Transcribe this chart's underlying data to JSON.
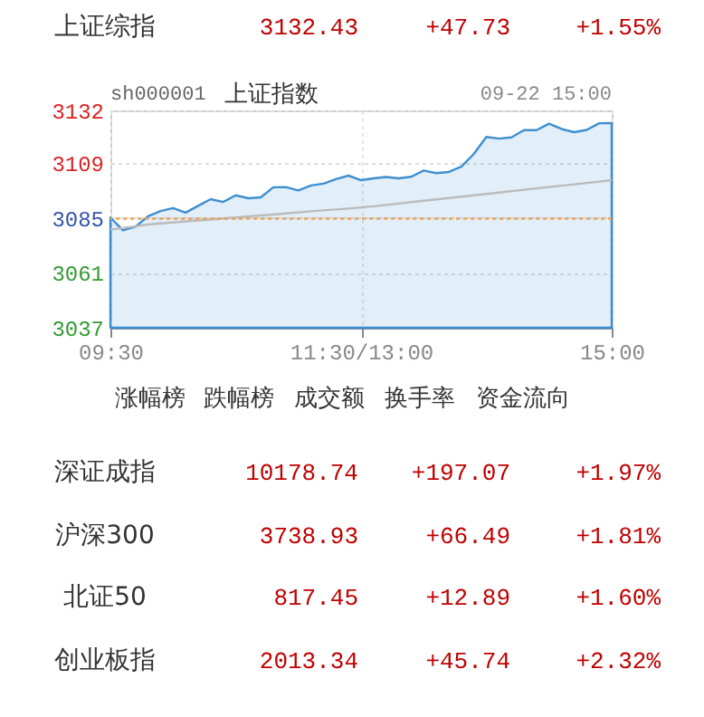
{
  "chart_data": [
    {
      "type": "other",
      "annotations": [
        "上证综指",
        "3132.43",
        "+47.73",
        "+1.55%"
      ]
    },
    {
      "type": "line",
      "title": "上证指数",
      "annotations": [
        "sh000001",
        "09-22 15:00"
      ],
      "categories": [
        "09:30",
        null,
        null,
        null,
        null,
        null,
        null,
        null,
        null,
        null,
        null,
        null,
        null,
        null,
        null,
        null,
        null,
        null,
        null,
        null,
        "11:30/13:00",
        null,
        null,
        null,
        null,
        null,
        null,
        null,
        null,
        null,
        null,
        null,
        null,
        null,
        null,
        null,
        null,
        null,
        null,
        null,
        "15:00"
      ],
      "ylim": [
        3037,
        3132
      ],
      "yticks": [
        3037,
        3061,
        3085,
        3109,
        3132
      ],
      "grid": true,
      "series": [
        {
          "type": "area",
          "color": "#3d8fd0",
          "values": [
            3085.2,
            3079.6,
            3081.2,
            3085.7,
            3088.0,
            3089.3,
            3087.3,
            3090.3,
            3093.2,
            3092.0,
            3094.9,
            3093.6,
            3094.0,
            3098.4,
            3098.5,
            3097.0,
            3099.2,
            3100.0,
            3102.0,
            3103.5,
            3101.5,
            3102.3,
            3102.9,
            3102.3,
            3103.0,
            3105.7,
            3104.6,
            3105.1,
            3107.4,
            3113.0,
            3120.4,
            3119.7,
            3120.2,
            3123.4,
            3123.4,
            3126.2,
            3123.9,
            3122.5,
            3123.5,
            3126.4,
            3126.5
          ]
        },
        {
          "type": "line",
          "color": "#bbbbbb",
          "values": [
            3079.9,
            3080.6,
            3081.4,
            3082.1,
            3082.6,
            3083.0,
            3083.5,
            3083.9,
            3084.3,
            3084.8,
            3085.2,
            3085.7,
            3086.1,
            3086.5,
            3087.0,
            3087.4,
            3087.9,
            3088.3,
            3088.7,
            3089.1,
            3089.6,
            3090.1,
            3090.7,
            3091.3,
            3091.9,
            3092.5,
            3093.1,
            3093.7,
            3094.3,
            3094.9,
            3095.5,
            3096.1,
            3096.7,
            3097.3,
            3097.9,
            3098.5,
            3099.1,
            3099.7,
            3100.3,
            3100.9,
            3101.5
          ]
        }
      ],
      "ref_lines": [
        {
          "axis": "y",
          "value": 3084.7,
          "color": "#f0a050",
          "line_style": "dotted"
        }
      ]
    },
    {
      "type": "other",
      "annotations": [
        "涨幅榜",
        "跌幅榜",
        "成交额",
        "换手率",
        "资金流向"
      ]
    },
    {
      "type": "other",
      "annotations": [
        "深证成指",
        "10178.74",
        "+197.07",
        "+1.97%",
        "沪深300",
        "3738.93",
        "+66.49",
        "+1.81%",
        "北证50",
        "817.45",
        "+12.89",
        "+1.60%",
        "创业板指",
        "2013.34",
        "+45.74",
        "+2.32%"
      ]
    }
  ]
}
